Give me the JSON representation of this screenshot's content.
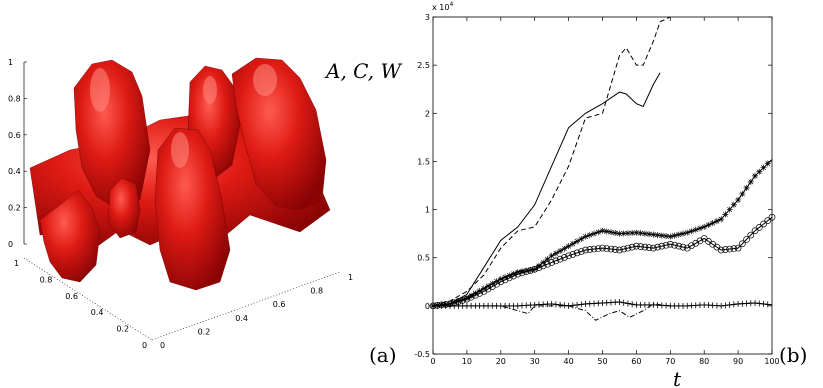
{
  "panel_labels": {
    "a": "(a)",
    "b": "(b)"
  },
  "surface_plot": {
    "z_ticks": [
      "0",
      "0.2",
      "0.4",
      "0.6",
      "0.8",
      "1"
    ],
    "y_ticks": [
      "0",
      "0.2",
      "0.4",
      "0.6",
      "0.8",
      "1"
    ],
    "x_ticks": [
      "0",
      "0.2",
      "0.4",
      "0.6",
      "0.8",
      "1"
    ],
    "surface_color": "#d01010"
  },
  "chart_data": {
    "type": "line",
    "xlabel": "t",
    "ylabel": "A, C, W",
    "exponent_label": "x 10",
    "exponent_power": "4",
    "xlim": [
      0,
      100
    ],
    "ylim": [
      -0.5,
      3
    ],
    "x_ticks": [
      "0",
      "10",
      "20",
      "30",
      "40",
      "50",
      "60",
      "70",
      "80",
      "90",
      "100"
    ],
    "y_ticks": [
      "-0.5",
      "0",
      "0.5",
      "1",
      "1.5",
      "2",
      "2.5",
      "3"
    ],
    "series": [
      {
        "style": "solid",
        "x": [
          0,
          5,
          10,
          15,
          20,
          25,
          30,
          35,
          40,
          45,
          50,
          55,
          57,
          60,
          62,
          65,
          67
        ],
        "y": [
          0,
          0.02,
          0.12,
          0.4,
          0.68,
          0.82,
          1.05,
          1.45,
          1.85,
          2.0,
          2.1,
          2.22,
          2.2,
          2.1,
          2.07,
          2.3,
          2.42
        ]
      },
      {
        "style": "dashed",
        "x": [
          0,
          5,
          10,
          15,
          20,
          25,
          30,
          35,
          40,
          45,
          50,
          55,
          57,
          60,
          62,
          65,
          67,
          70
        ],
        "y": [
          0,
          0.05,
          0.15,
          0.32,
          0.6,
          0.78,
          0.82,
          1.1,
          1.45,
          1.95,
          2.0,
          2.6,
          2.68,
          2.5,
          2.5,
          2.75,
          2.95,
          3.0
        ]
      },
      {
        "style": "dashdot",
        "x": [
          0,
          10,
          20,
          25,
          28,
          30,
          35,
          40,
          45,
          48,
          52,
          55,
          58,
          62,
          65,
          70
        ],
        "y": [
          0,
          0,
          0,
          -0.05,
          -0.08,
          0,
          0,
          0,
          -0.05,
          -0.15,
          -0.08,
          -0.05,
          -0.12,
          -0.05,
          0.02,
          0
        ]
      },
      {
        "style": "star",
        "x": [
          0,
          5,
          10,
          15,
          20,
          25,
          30,
          35,
          40,
          45,
          50,
          55,
          60,
          65,
          70,
          75,
          80,
          85,
          90,
          95,
          100
        ],
        "y": [
          0,
          0.02,
          0.08,
          0.18,
          0.28,
          0.35,
          0.38,
          0.52,
          0.62,
          0.72,
          0.78,
          0.75,
          0.76,
          0.74,
          0.72,
          0.76,
          0.82,
          0.9,
          1.1,
          1.35,
          1.52
        ]
      },
      {
        "style": "circle",
        "x": [
          0,
          5,
          10,
          15,
          20,
          25,
          30,
          35,
          40,
          45,
          50,
          55,
          60,
          65,
          70,
          75,
          80,
          85,
          90,
          95,
          100
        ],
        "y": [
          0,
          0.02,
          0.07,
          0.15,
          0.25,
          0.33,
          0.38,
          0.45,
          0.52,
          0.58,
          0.6,
          0.58,
          0.62,
          0.6,
          0.64,
          0.6,
          0.7,
          0.58,
          0.6,
          0.78,
          0.92
        ]
      },
      {
        "style": "plus",
        "x": [
          0,
          5,
          10,
          15,
          20,
          25,
          30,
          35,
          40,
          45,
          50,
          55,
          60,
          65,
          70,
          75,
          80,
          85,
          90,
          95,
          100
        ],
        "y": [
          0,
          0,
          0,
          0,
          0,
          0,
          0.01,
          0.02,
          0,
          0.02,
          0.03,
          0.04,
          0.01,
          0.01,
          0,
          0,
          0.01,
          0,
          0.02,
          0.03,
          0.01
        ]
      }
    ]
  }
}
